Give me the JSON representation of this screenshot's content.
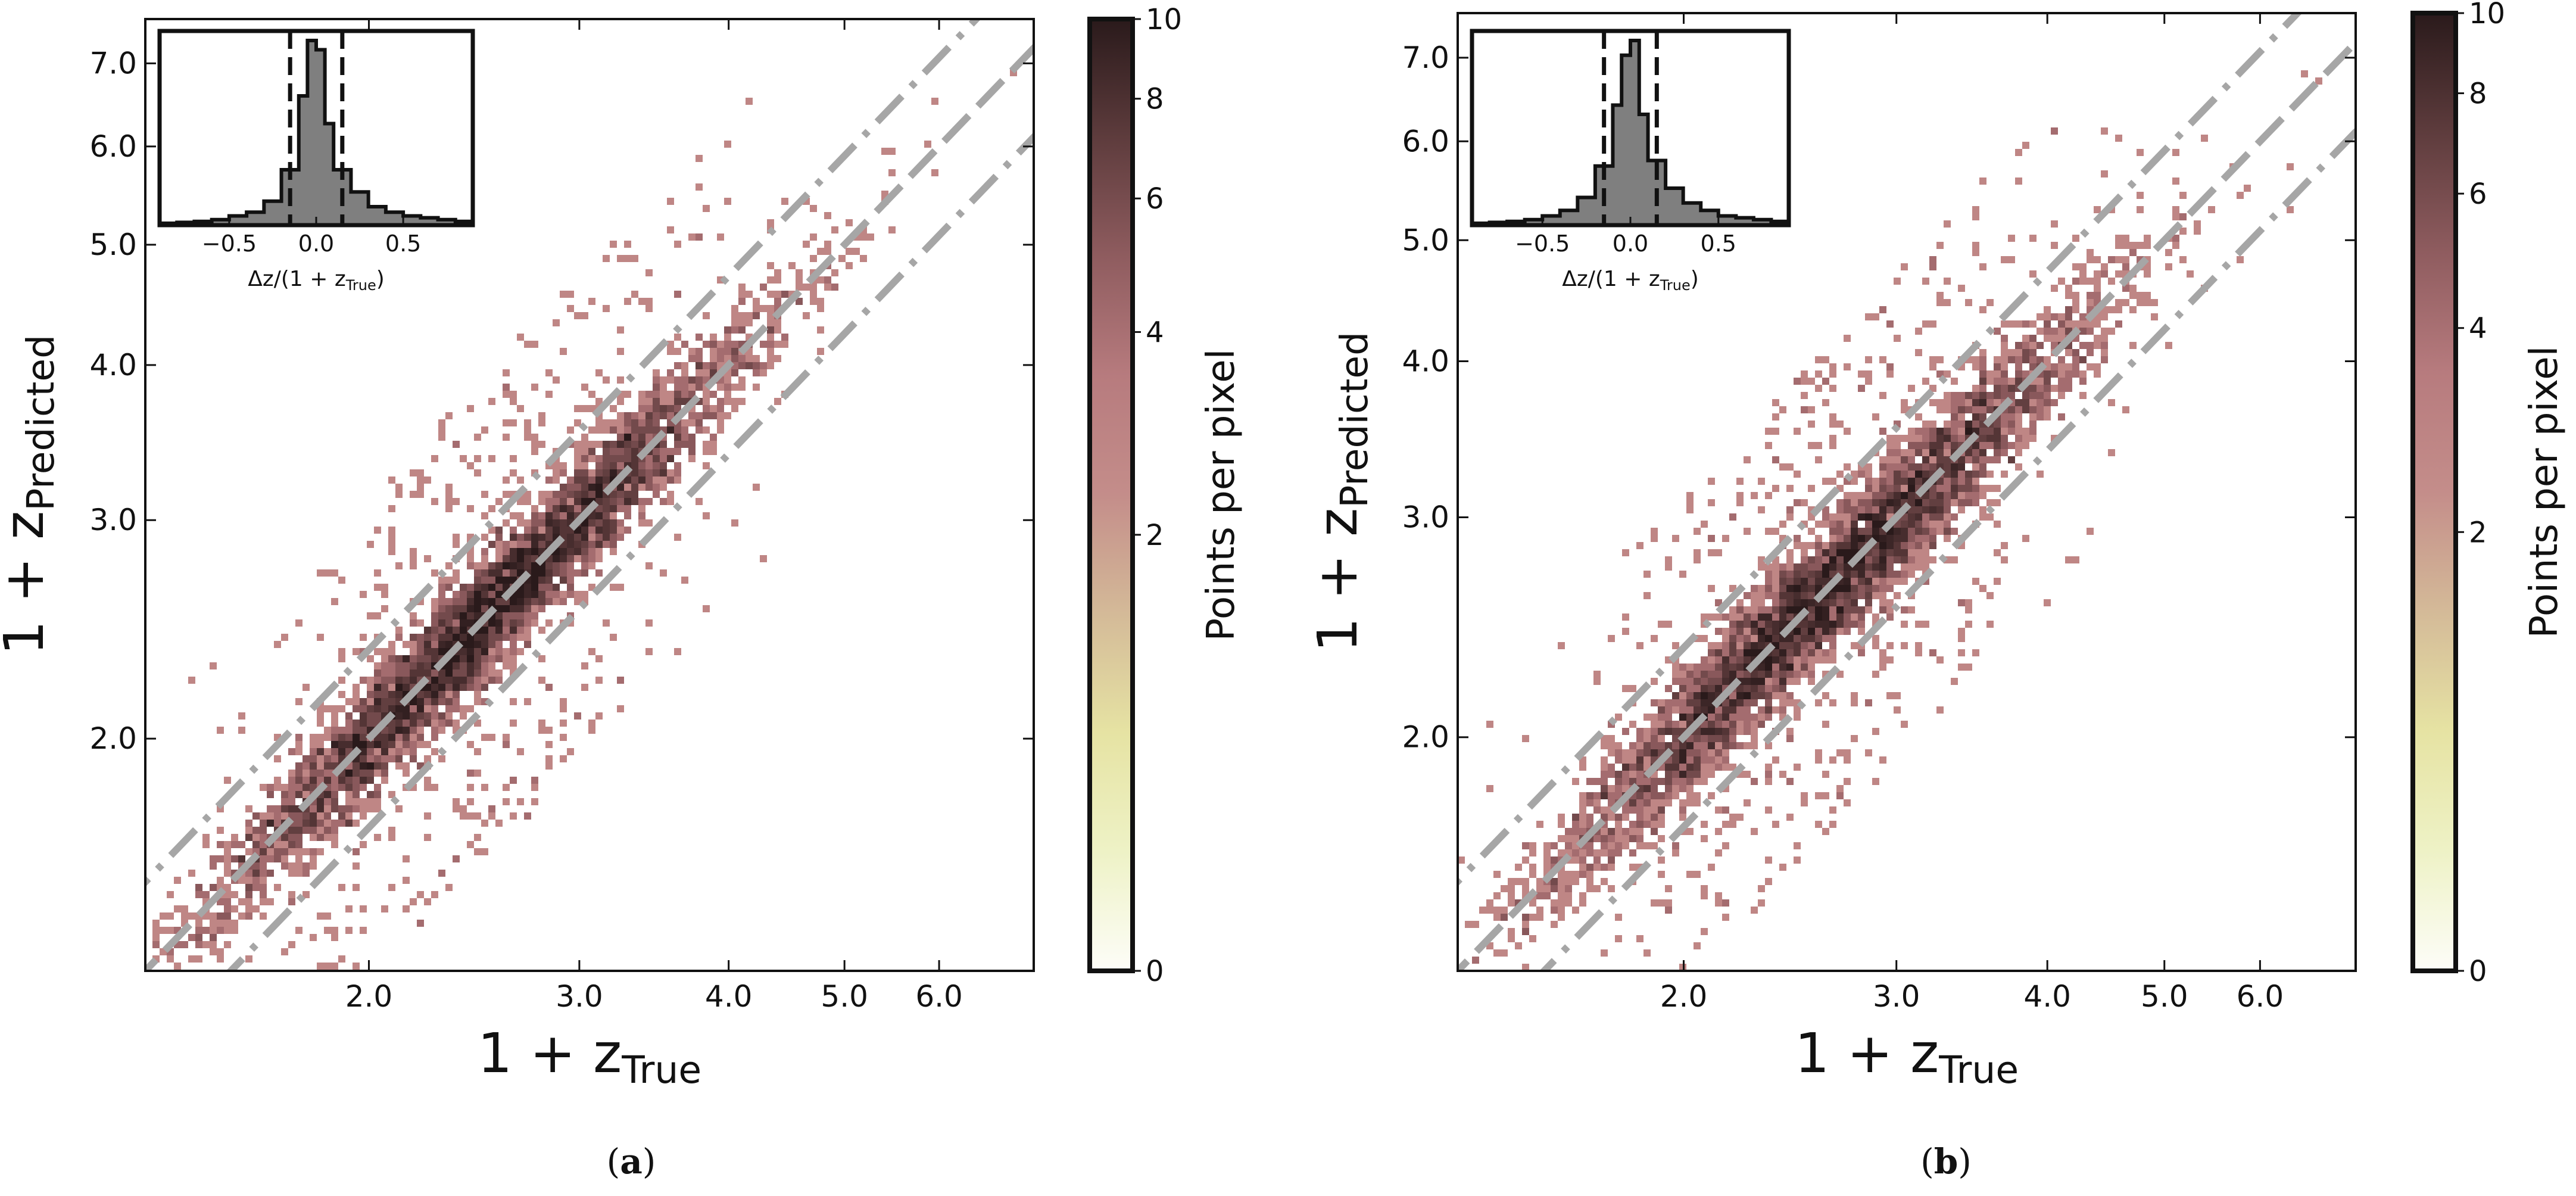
{
  "colors": {
    "background": "#ffffff",
    "frame": "#111111",
    "guide_line": "#a6a6a6",
    "hist_fill": "#7f7f7f",
    "colormap": [
      "#fdfdf8",
      "#eef2c6",
      "#e6e3a3",
      "#d4ba98",
      "#c48d8a",
      "#b77b7e",
      "#8f5c5f",
      "#5e3c3d",
      "#2a1a1b"
    ]
  },
  "chart_data": [
    {
      "type": "heatmap",
      "panel_label": "(a)",
      "xlabel": "1 + z_True",
      "ylabel": "1 + z_Predicted",
      "x_scale": "log",
      "y_scale": "log",
      "xlim": [
        1.3,
        7.2
      ],
      "ylim": [
        1.3,
        7.6
      ],
      "x_ticks": [
        2.0,
        3.0,
        4.0,
        5.0,
        6.0
      ],
      "x_tick_labels": [
        "2.0",
        "3.0",
        "4.0",
        "5.0",
        "6.0"
      ],
      "y_ticks": [
        2.0,
        3.0,
        4.0,
        5.0,
        6.0,
        7.0
      ],
      "y_tick_labels": [
        "2.0",
        "3.0",
        "4.0",
        "5.0",
        "6.0",
        "7.0"
      ],
      "guide_lines": [
        {
          "name": "one-to-one",
          "style": "dashed",
          "offset": 0.0
        },
        {
          "name": "upper-bound",
          "style": "dash-dot",
          "offset": 0.15
        },
        {
          "name": "lower-bound",
          "style": "dash-dot",
          "offset": -0.15
        }
      ],
      "density": {
        "center_x": 2.5,
        "spread": 0.055,
        "max_count": 10,
        "count_min": 0
      },
      "colorbar": {
        "label": "Points per pixel",
        "scale": "log",
        "range": [
          0,
          10
        ],
        "ticks": [
          0,
          2,
          4,
          6,
          8,
          10
        ],
        "tick_labels": [
          "0",
          "2",
          "4",
          "6",
          "8",
          "10"
        ]
      },
      "inset": {
        "type": "histogram",
        "xlabel": "Δz/(1 + z_True)",
        "xlim": [
          -0.9,
          0.9
        ],
        "x_ticks": [
          -0.5,
          0.0,
          0.5
        ],
        "x_tick_labels": [
          "−0.5",
          "0.0",
          "0.5"
        ],
        "bin_edges": [
          -0.9,
          -0.8,
          -0.7,
          -0.6,
          -0.5,
          -0.4,
          -0.3,
          -0.2,
          -0.1,
          -0.05,
          0.0,
          0.05,
          0.1,
          0.2,
          0.3,
          0.4,
          0.5,
          0.6,
          0.7,
          0.8,
          0.9
        ],
        "counts": [
          0.01,
          0.015,
          0.02,
          0.03,
          0.05,
          0.07,
          0.13,
          0.3,
          0.7,
          1.0,
          0.95,
          0.55,
          0.3,
          0.18,
          0.1,
          0.07,
          0.05,
          0.04,
          0.03,
          0.02
        ],
        "threshold_lines": [
          -0.15,
          0.15
        ]
      }
    },
    {
      "type": "heatmap",
      "panel_label": "(b)",
      "xlabel": "1 + z_True",
      "ylabel": "1 + z_Predicted",
      "x_scale": "log",
      "y_scale": "log",
      "xlim": [
        1.3,
        7.2
      ],
      "ylim": [
        1.3,
        7.6
      ],
      "x_ticks": [
        2.0,
        3.0,
        4.0,
        5.0,
        6.0
      ],
      "x_tick_labels": [
        "2.0",
        "3.0",
        "4.0",
        "5.0",
        "6.0"
      ],
      "y_ticks": [
        2.0,
        3.0,
        4.0,
        5.0,
        6.0,
        7.0
      ],
      "y_tick_labels": [
        "2.0",
        "3.0",
        "4.0",
        "5.0",
        "6.0",
        "7.0"
      ],
      "guide_lines": [
        {
          "name": "one-to-one",
          "style": "dashed",
          "offset": 0.0
        },
        {
          "name": "upper-bound",
          "style": "dash-dot",
          "offset": 0.15
        },
        {
          "name": "lower-bound",
          "style": "dash-dot",
          "offset": -0.15
        }
      ],
      "density": {
        "center_x": 2.6,
        "spread": 0.06,
        "max_count": 10,
        "count_min": 0
      },
      "colorbar": {
        "label": "Points per pixel",
        "scale": "log",
        "range": [
          0,
          10
        ],
        "ticks": [
          0,
          2,
          4,
          6,
          8,
          10
        ],
        "tick_labels": [
          "0",
          "2",
          "4",
          "6",
          "8",
          "10"
        ]
      },
      "inset": {
        "type": "histogram",
        "xlabel": "Δz/(1 + z_True)",
        "xlim": [
          -0.9,
          0.9
        ],
        "x_ticks": [
          -0.5,
          0.0,
          0.5
        ],
        "x_tick_labels": [
          "−0.5",
          "0.0",
          "0.5"
        ],
        "bin_edges": [
          -0.9,
          -0.8,
          -0.7,
          -0.6,
          -0.5,
          -0.4,
          -0.3,
          -0.2,
          -0.1,
          -0.05,
          0.0,
          0.05,
          0.1,
          0.2,
          0.3,
          0.4,
          0.5,
          0.6,
          0.7,
          0.8,
          0.9
        ],
        "counts": [
          0.01,
          0.015,
          0.02,
          0.03,
          0.05,
          0.08,
          0.15,
          0.32,
          0.65,
          0.92,
          1.0,
          0.6,
          0.35,
          0.2,
          0.12,
          0.08,
          0.05,
          0.04,
          0.03,
          0.02
        ],
        "threshold_lines": [
          -0.15,
          0.15
        ]
      }
    }
  ]
}
